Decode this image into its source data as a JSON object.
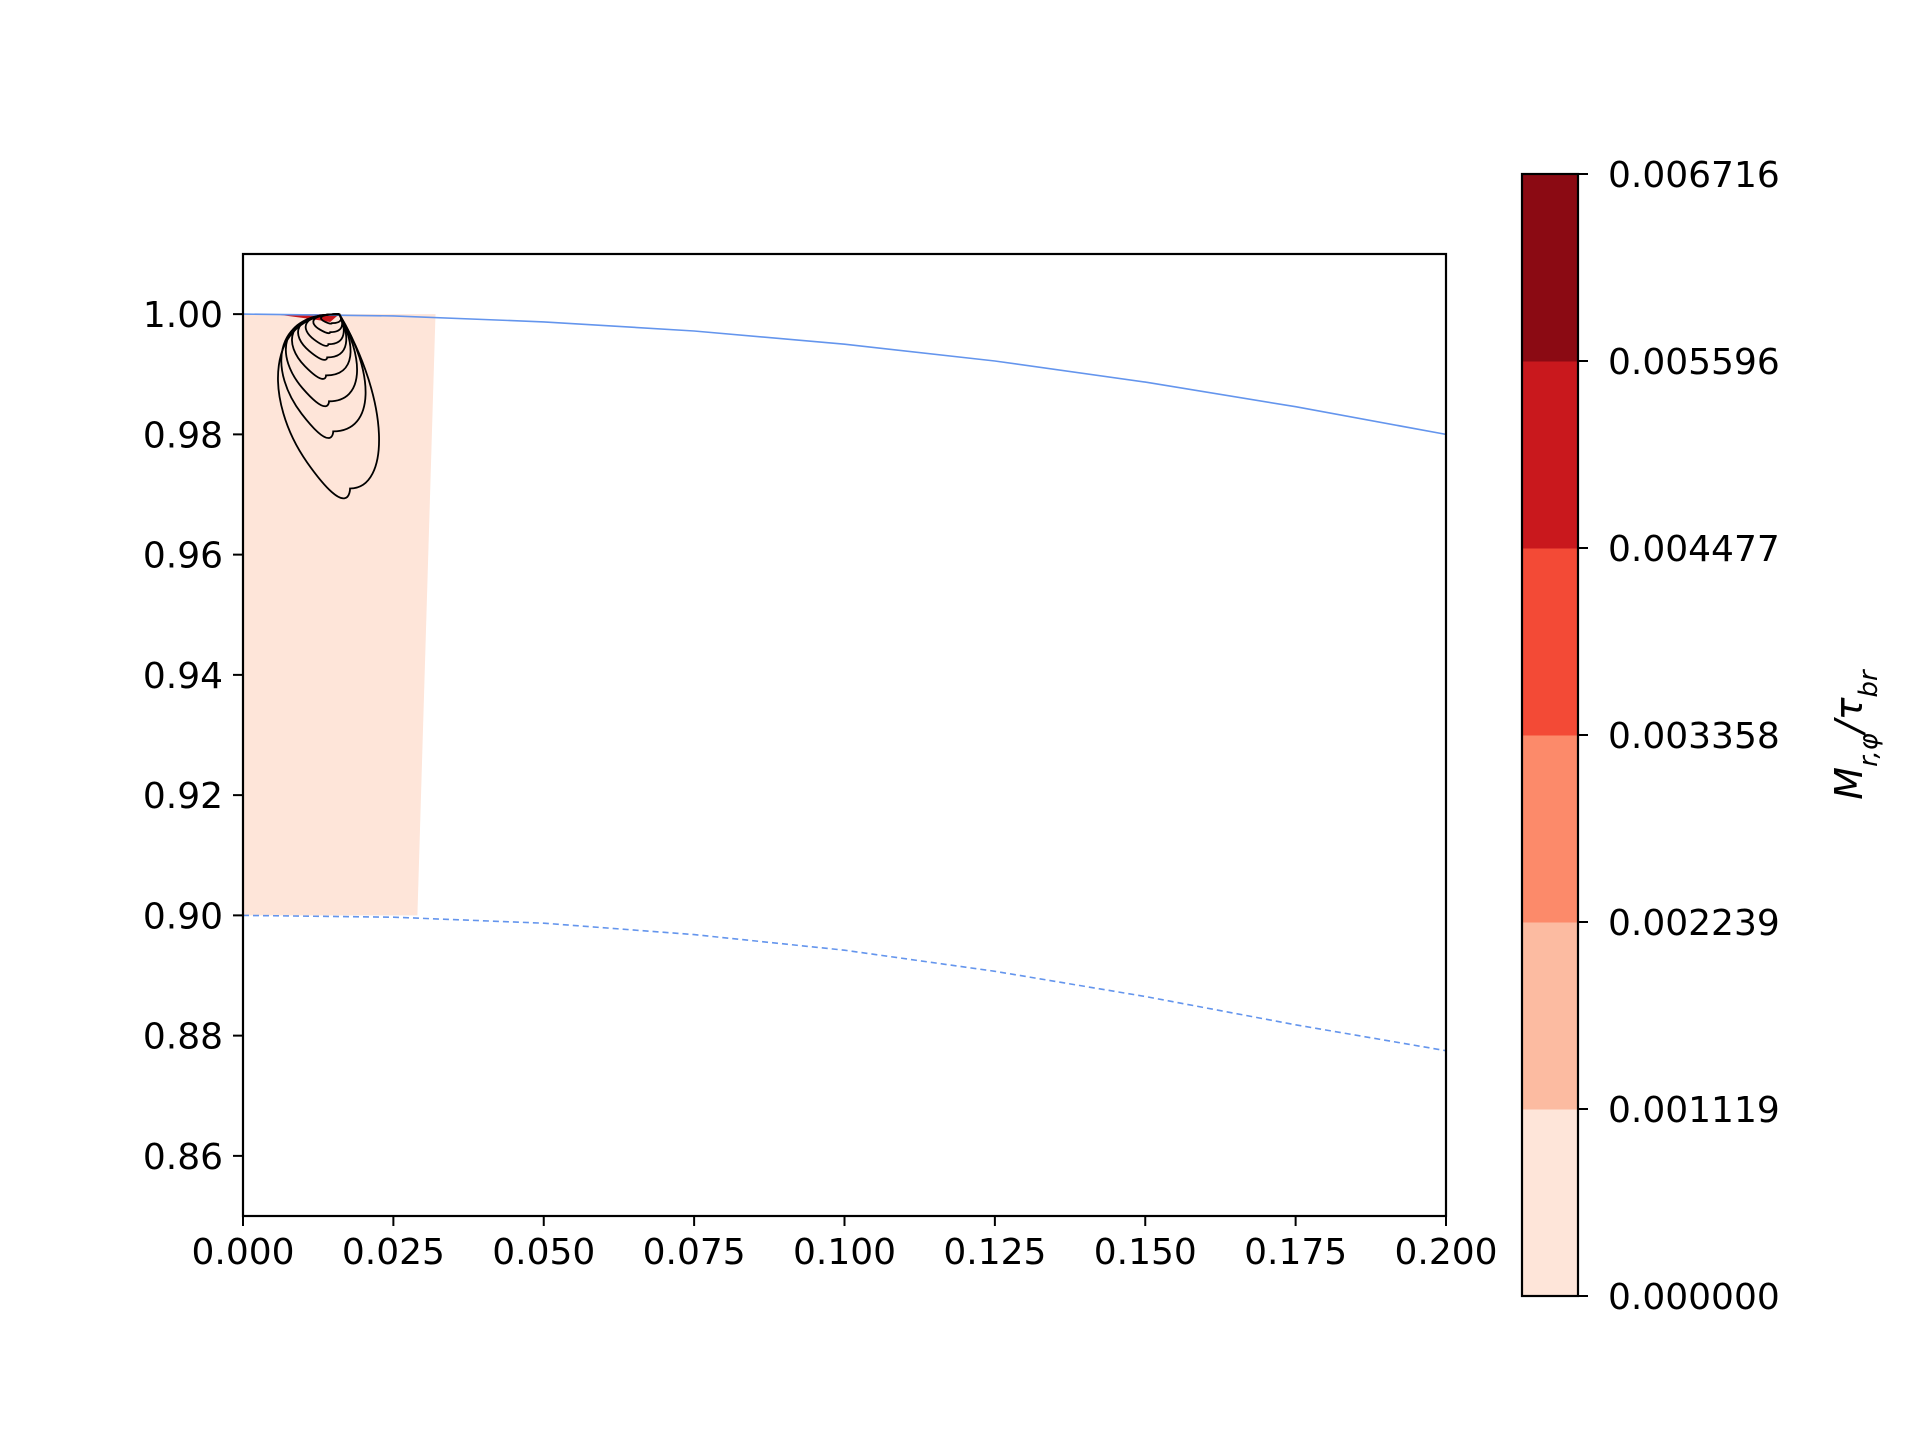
{
  "chart_data": {
    "type": "contour",
    "title": "",
    "xlabel": "",
    "ylabel": "",
    "xlim": [
      0.0,
      0.2
    ],
    "ylim": [
      0.85,
      1.01
    ],
    "x_ticks": [
      "0.000",
      "0.025",
      "0.050",
      "0.075",
      "0.100",
      "0.125",
      "0.150",
      "0.175",
      "0.200"
    ],
    "y_ticks": [
      "0.86",
      "0.88",
      "0.90",
      "0.92",
      "0.94",
      "0.96",
      "0.98",
      "1.00"
    ],
    "grid": false,
    "shaded_region": {
      "level_range": [
        0.0,
        0.001119
      ],
      "corners": [
        [
          0.0,
          0.9
        ],
        [
          0.0,
          1.0
        ],
        [
          0.032,
          1.0
        ],
        [
          0.029,
          0.9
        ]
      ]
    },
    "series": [
      {
        "style": "solid",
        "color": "#6495ed",
        "x": [
          0.0,
          0.025,
          0.05,
          0.075,
          0.1,
          0.125,
          0.15,
          0.175,
          0.2
        ],
        "y": [
          1.0,
          0.9997,
          0.9987,
          0.9972,
          0.995,
          0.9922,
          0.9887,
          0.9846,
          0.98
        ]
      },
      {
        "style": "dashed",
        "color": "#6495ed",
        "x": [
          0.0,
          0.025,
          0.05,
          0.075,
          0.1,
          0.125,
          0.15,
          0.175,
          0.2
        ],
        "y": [
          0.9,
          0.8997,
          0.8987,
          0.8968,
          0.8942,
          0.8907,
          0.8865,
          0.8818,
          0.8775
        ]
      }
    ],
    "contour_lines": {
      "color": "#000000",
      "apex": [
        0.016,
        1.0
      ],
      "loops": [
        {
          "left": 0.0125,
          "right": 0.0165,
          "bottom": 0.9985,
          "low_x": 0.0148
        },
        {
          "left": 0.011,
          "right": 0.0168,
          "bottom": 0.997,
          "low_x": 0.0145
        },
        {
          "left": 0.0095,
          "right": 0.0172,
          "bottom": 0.995,
          "low_x": 0.0142
        },
        {
          "left": 0.008,
          "right": 0.0178,
          "bottom": 0.9928,
          "low_x": 0.014
        },
        {
          "left": 0.0068,
          "right": 0.0188,
          "bottom": 0.9898,
          "low_x": 0.0138
        },
        {
          "left": 0.0055,
          "right": 0.0202,
          "bottom": 0.9855,
          "low_x": 0.0143
        },
        {
          "left": 0.0045,
          "right": 0.022,
          "bottom": 0.9805,
          "low_x": 0.015
        },
        {
          "left": 0.0035,
          "right": 0.0245,
          "bottom": 0.971,
          "low_x": 0.0178
        }
      ]
    },
    "colorbar": {
      "label": "M_{r,φ}/τ_{br}",
      "ticks": [
        "0.000000",
        "0.001119",
        "0.002239",
        "0.003358",
        "0.004477",
        "0.005596",
        "0.006716"
      ],
      "colors": [
        "#fee5d9",
        "#fcbba1",
        "#fc8a6a",
        "#f34a36",
        "#c9181d",
        "#8b0a13"
      ]
    }
  }
}
